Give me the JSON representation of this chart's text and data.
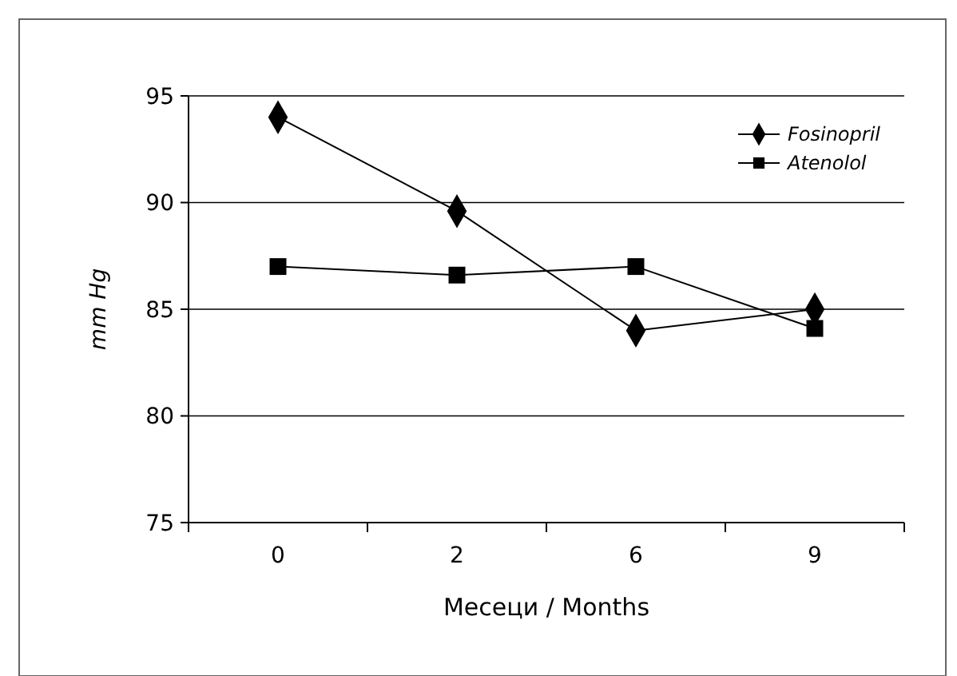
{
  "chart_data": {
    "type": "line",
    "xlabel": "Месеци / Months",
    "ylabel": "mm Hg",
    "categories": [
      "0",
      "2",
      "6",
      "9"
    ],
    "series": [
      {
        "name": "Fosinopril",
        "color": "#000000",
        "marker": "diamond",
        "values": [
          94,
          89.6,
          84,
          85
        ]
      },
      {
        "name": "Atenolol",
        "color": "#000000",
        "marker": "square",
        "values": [
          87,
          86.6,
          87,
          84.1
        ]
      }
    ],
    "ylim": [
      75,
      95
    ],
    "yticks": [
      75,
      80,
      85,
      90,
      95
    ],
    "grid": "y",
    "legend": "top right",
    "line_style": "solid"
  }
}
